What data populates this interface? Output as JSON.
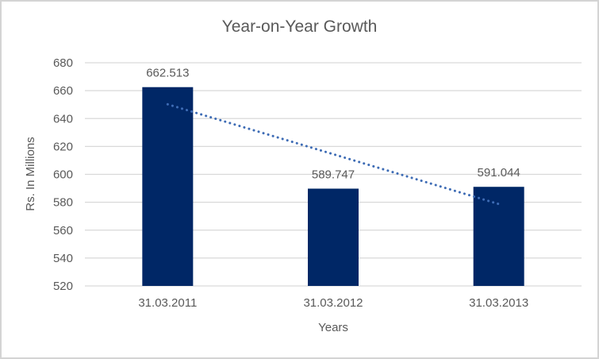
{
  "window": {
    "background": "#ffffff",
    "border_color": "#d4d4d4"
  },
  "chart_data": {
    "type": "bar",
    "title": "Year-on-Year Growth",
    "xlabel": "Years",
    "ylabel": "Rs. In Millions",
    "categories": [
      "31.03.2011",
      "31.03.2012",
      "31.03.2013"
    ],
    "values": [
      662.513,
      589.747,
      591.044
    ],
    "data_labels": [
      "662.513",
      "589.747",
      "591.044"
    ],
    "ylim": [
      520,
      680
    ],
    "ytick_step": 20,
    "yticks": [
      520,
      540,
      560,
      580,
      600,
      620,
      640,
      660,
      680
    ],
    "grid": true,
    "legend": false,
    "bar_color": "#002766",
    "gridline_color": "#d9d9d9",
    "text_color": "#595959",
    "trendline": {
      "type": "linear",
      "style": "dotted",
      "color": "#3e6cb5",
      "start_value": 650.2,
      "end_value": 578.7
    }
  }
}
